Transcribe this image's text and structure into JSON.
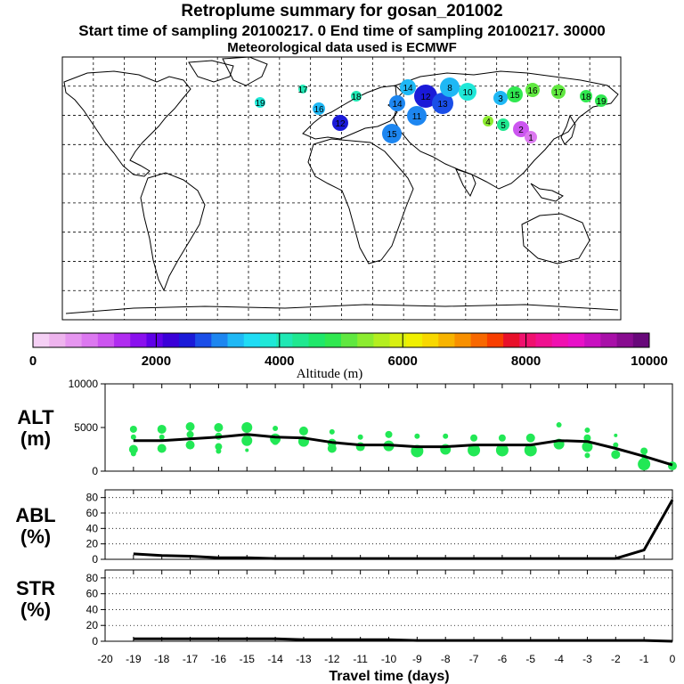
{
  "header": {
    "title": "Retroplume summary for gosan_201002",
    "line2": "Start time of sampling 20100217.    0     End time of sampling 20100217. 30000",
    "line3": "Meteorological data used is ECMWF"
  },
  "colorbar": {
    "ticks": [
      "0",
      "2000",
      "4000",
      "6000",
      "8000",
      "10000"
    ],
    "label": "Altitude  (m)",
    "colors": [
      "#f5d0f5",
      "#eeb4ee",
      "#e696f0",
      "#dc78f0",
      "#cc55f0",
      "#b02cf0",
      "#8a10ee",
      "#5f00e8",
      "#3a00d8",
      "#1a1ad8",
      "#1a4ee8",
      "#1d86f0",
      "#1fb8f5",
      "#1fdcf5",
      "#1fe8d8",
      "#1fe8b4",
      "#1fe890",
      "#1fe86a",
      "#30e850",
      "#60e840",
      "#8cec30",
      "#b4ee20",
      "#d8f010",
      "#f0f000",
      "#f8d800",
      "#f8b400",
      "#f89000",
      "#f86800",
      "#f83e00",
      "#e8102a",
      "#f0106e",
      "#f01090",
      "#f010b0",
      "#e810c8",
      "#c810c0",
      "#a810a8",
      "#880c90",
      "#68087a"
    ]
  },
  "map": {
    "clusters": [
      {
        "label": "19",
        "color": "#1fe8d8"
      },
      {
        "label": "17",
        "color": "#1fe8b4"
      },
      {
        "label": "16",
        "color": "#1fb8f5"
      },
      {
        "label": "18",
        "color": "#1fe8b4"
      },
      {
        "label": "14",
        "color": "#1fb8f5"
      },
      {
        "label": "14",
        "color": "#1d86f0"
      },
      {
        "label": "11",
        "color": "#1d86f0"
      },
      {
        "label": "12",
        "color": "#1a1ad8"
      },
      {
        "label": "13",
        "color": "#1a4ee8"
      },
      {
        "label": "15",
        "color": "#30e850"
      },
      {
        "label": "16",
        "color": "#60e840"
      },
      {
        "label": "17",
        "color": "#60e840"
      },
      {
        "label": "18",
        "color": "#30e850"
      },
      {
        "label": "19",
        "color": "#30e850"
      },
      {
        "label": "4",
        "color": "#8cec30"
      },
      {
        "label": "5",
        "color": "#1fe890"
      },
      {
        "label": "2",
        "color": "#cc55f0"
      },
      {
        "label": "1",
        "color": "#dc78f0"
      },
      {
        "label": "3",
        "color": "#1fb8f5"
      },
      {
        "label": "10",
        "color": "#1fe8d8"
      },
      {
        "label": "8",
        "color": "#1fb8f5"
      },
      {
        "label": "15",
        "color": "#1d86f0"
      },
      {
        "label": "12",
        "color": "#1a1ad8"
      }
    ]
  },
  "panels": {
    "alt": {
      "label_top": "ALT",
      "label_bottom": "(m)",
      "ticks": [
        "10000",
        "5000",
        "0"
      ]
    },
    "abl": {
      "label_top": "ABL",
      "label_bottom": "(%)",
      "ticks": [
        "80",
        "60",
        "40",
        "20",
        "0"
      ]
    },
    "str": {
      "label_top": "STR",
      "label_bottom": "(%)",
      "ticks": [
        "80",
        "60",
        "40",
        "20",
        "0"
      ]
    }
  },
  "chart_data": {
    "type": "line",
    "title": "Retroplume summary for gosan_201002",
    "xlabel": "Travel time (days)",
    "xlim": [
      -20,
      0
    ],
    "x_ticks": [
      "-20",
      "-19",
      "-18",
      "-17",
      "-16",
      "-15",
      "-14",
      "-13",
      "-12",
      "-11",
      "-10",
      "-9",
      "-8",
      "-7",
      "-6",
      "-5",
      "-4",
      "-3",
      "-2",
      "-1",
      "0"
    ],
    "x": [
      -19,
      -18,
      -17,
      -16,
      -15,
      -14,
      -13,
      -12,
      -11,
      -10,
      -9,
      -8,
      -7,
      -6,
      -5,
      -4,
      -3,
      -2,
      -1,
      0
    ],
    "series": [
      {
        "name": "ALT (m)",
        "ylim": [
          0,
          10000
        ],
        "values": [
          3500,
          3500,
          3700,
          3900,
          4200,
          3900,
          3800,
          3300,
          3000,
          3000,
          2800,
          2800,
          3000,
          3000,
          3000,
          3500,
          3400,
          2600,
          1700,
          700
        ]
      },
      {
        "name": "ABL (%)",
        "ylim": [
          0,
          90
        ],
        "values": [
          7,
          5,
          4,
          2,
          2,
          1,
          1,
          1,
          1,
          1,
          1,
          1,
          1,
          1,
          1,
          1,
          1,
          1,
          12,
          77
        ]
      },
      {
        "name": "STR (%)",
        "ylim": [
          0,
          90
        ],
        "values": [
          3,
          3,
          3,
          3,
          3,
          3,
          2,
          2,
          2,
          2,
          1,
          1,
          1,
          1,
          1,
          1,
          1,
          1,
          1,
          0
        ]
      }
    ],
    "scatter_points": [
      {
        "x": -19,
        "y": 4800,
        "s": 4
      },
      {
        "x": -19,
        "y": 3900,
        "s": 3
      },
      {
        "x": -19,
        "y": 2500,
        "s": 5
      },
      {
        "x": -19,
        "y": 2000,
        "s": 3
      },
      {
        "x": -18,
        "y": 4800,
        "s": 5
      },
      {
        "x": -18,
        "y": 3900,
        "s": 3
      },
      {
        "x": -18,
        "y": 2600,
        "s": 5
      },
      {
        "x": -17,
        "y": 5100,
        "s": 5
      },
      {
        "x": -17,
        "y": 4200,
        "s": 4
      },
      {
        "x": -17,
        "y": 3000,
        "s": 5
      },
      {
        "x": -16,
        "y": 5000,
        "s": 5
      },
      {
        "x": -16,
        "y": 4000,
        "s": 4
      },
      {
        "x": -16,
        "y": 2800,
        "s": 4
      },
      {
        "x": -16,
        "y": 2300,
        "s": 3
      },
      {
        "x": -15,
        "y": 5000,
        "s": 6
      },
      {
        "x": -15,
        "y": 3500,
        "s": 6
      },
      {
        "x": -15,
        "y": 2400,
        "s": 2
      },
      {
        "x": -14,
        "y": 4900,
        "s": 3
      },
      {
        "x": -14,
        "y": 3700,
        "s": 6
      },
      {
        "x": -14,
        "y": 3400,
        "s": 4
      },
      {
        "x": -13,
        "y": 4600,
        "s": 5
      },
      {
        "x": -13,
        "y": 3400,
        "s": 6
      },
      {
        "x": -12,
        "y": 4500,
        "s": 3
      },
      {
        "x": -12,
        "y": 3200,
        "s": 5
      },
      {
        "x": -12,
        "y": 2600,
        "s": 5
      },
      {
        "x": -11,
        "y": 3900,
        "s": 3
      },
      {
        "x": -11,
        "y": 2800,
        "s": 5
      },
      {
        "x": -10,
        "y": 4200,
        "s": 4
      },
      {
        "x": -10,
        "y": 2900,
        "s": 6
      },
      {
        "x": -9,
        "y": 4000,
        "s": 3
      },
      {
        "x": -9,
        "y": 2300,
        "s": 7
      },
      {
        "x": -8,
        "y": 4000,
        "s": 3
      },
      {
        "x": -8,
        "y": 2500,
        "s": 6
      },
      {
        "x": -7,
        "y": 3800,
        "s": 4
      },
      {
        "x": -7,
        "y": 2400,
        "s": 7
      },
      {
        "x": -6,
        "y": 3800,
        "s": 4
      },
      {
        "x": -6,
        "y": 2400,
        "s": 7
      },
      {
        "x": -5,
        "y": 3800,
        "s": 5
      },
      {
        "x": -5,
        "y": 2400,
        "s": 7
      },
      {
        "x": -4,
        "y": 5300,
        "s": 3
      },
      {
        "x": -4,
        "y": 3100,
        "s": 6
      },
      {
        "x": -3,
        "y": 4700,
        "s": 3
      },
      {
        "x": -3,
        "y": 3800,
        "s": 4
      },
      {
        "x": -3,
        "y": 2800,
        "s": 6
      },
      {
        "x": -3,
        "y": 1800,
        "s": 3
      },
      {
        "x": -2,
        "y": 4100,
        "s": 2
      },
      {
        "x": -2,
        "y": 3000,
        "s": 3
      },
      {
        "x": -2,
        "y": 1900,
        "s": 5
      },
      {
        "x": -1,
        "y": 2300,
        "s": 4
      },
      {
        "x": -1,
        "y": 1700,
        "s": 3
      },
      {
        "x": -1,
        "y": 800,
        "s": 7
      },
      {
        "x": 0,
        "y": 600,
        "s": 5
      }
    ]
  }
}
